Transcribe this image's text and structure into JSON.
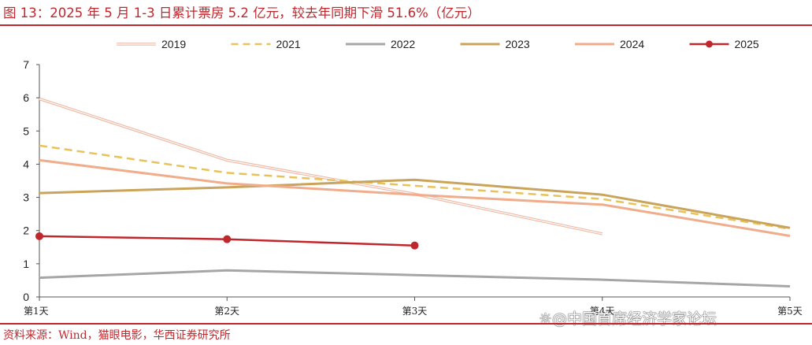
{
  "figure": {
    "title": "图 13：2025 年 5 月 1-3 日累计票房 5.2 亿元，较去年同期下滑 51.6%（亿元）",
    "source": "资料来源：Wind，猫眼电影，华西证券研究所",
    "watermark": "中国首席经济学家论坛",
    "watermark_icon": "weibo-icon"
  },
  "colors": {
    "accent": "#c0272d",
    "axis": "#555555"
  },
  "chart_data": {
    "type": "line",
    "categories": [
      "第1天",
      "第2天",
      "第3天",
      "第4天",
      "第5天"
    ],
    "ylim": [
      0,
      7
    ],
    "yticks": [
      "0",
      "1",
      "2",
      "3",
      "4",
      "5",
      "6",
      "7"
    ],
    "grid": false,
    "legend_position": "top",
    "series": [
      {
        "name": "2019",
        "values": [
          5.97,
          4.12,
          3.1,
          1.9,
          null
        ],
        "color": "#f0b8a4",
        "style": "double"
      },
      {
        "name": "2021",
        "values": [
          4.56,
          3.74,
          3.35,
          2.95,
          2.05
        ],
        "color": "#e8c25a",
        "style": "dashed"
      },
      {
        "name": "2022",
        "values": [
          0.58,
          0.8,
          0.66,
          0.52,
          0.32
        ],
        "color": "#a6a6a6",
        "style": "solid"
      },
      {
        "name": "2023",
        "values": [
          3.13,
          3.3,
          3.53,
          3.08,
          2.08
        ],
        "color": "#c9a45a",
        "style": "solid"
      },
      {
        "name": "2024",
        "values": [
          4.12,
          3.42,
          3.08,
          2.78,
          1.84
        ],
        "color": "#f0ad8c",
        "style": "solid"
      },
      {
        "name": "2025",
        "values": [
          1.83,
          1.74,
          1.55,
          null,
          null
        ],
        "color": "#c0272d",
        "style": "marker"
      }
    ]
  }
}
